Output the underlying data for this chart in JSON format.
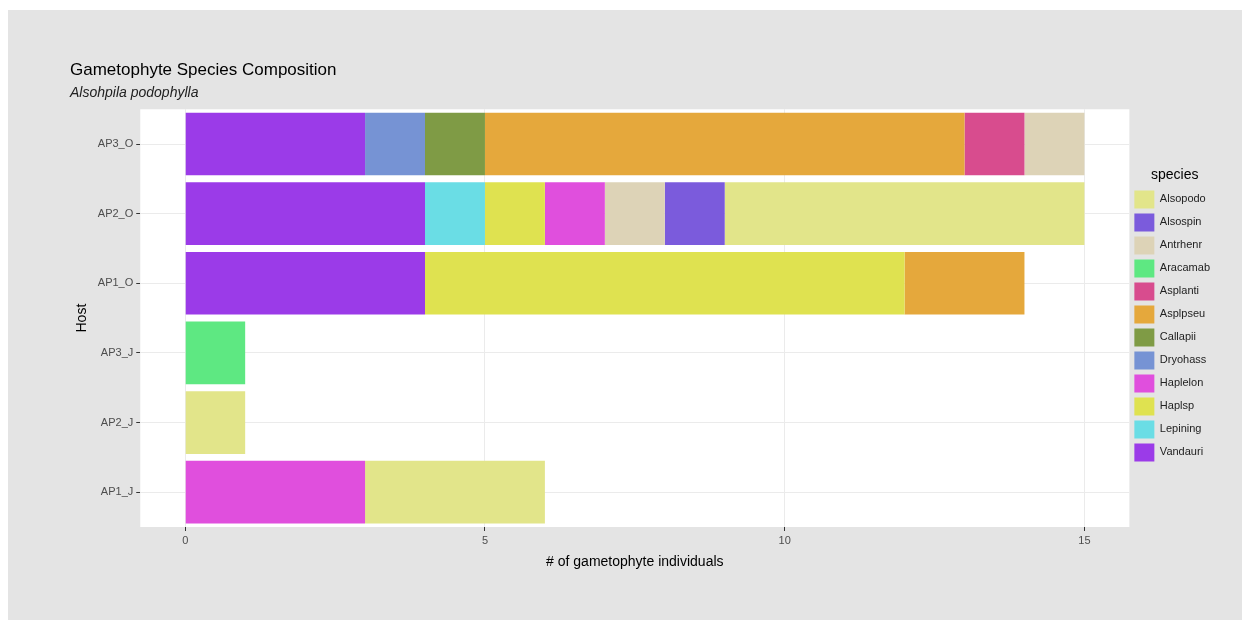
{
  "chart_data": {
    "type": "bar",
    "orientation": "horizontal",
    "stacked": true,
    "title": "Gametophyte Species Composition",
    "subtitle": "Alsohpila podophylla",
    "xlabel": "# of gametophyte individuals",
    "ylabel": "Host",
    "legend_title": "species",
    "legend": "right",
    "grid": true,
    "categories": [
      "AP3_O",
      "AP2_O",
      "AP1_O",
      "AP3_J",
      "AP2_J",
      "AP1_J"
    ],
    "xlim": [
      -0.75,
      15.75
    ],
    "xticks": [
      0,
      5,
      10,
      15
    ],
    "series": [
      {
        "name": "Vandauri",
        "color": "#9b3be8",
        "values": [
          3,
          4,
          4,
          null,
          null,
          null
        ]
      },
      {
        "name": "Lepining",
        "color": "#6adde5",
        "values": [
          null,
          1,
          null,
          null,
          null,
          null
        ]
      },
      {
        "name": "Haplsp",
        "color": "#dfe250",
        "values": [
          null,
          1,
          8,
          null,
          null,
          null
        ]
      },
      {
        "name": "Haplelon",
        "color": "#e04fdd",
        "values": [
          null,
          1,
          null,
          null,
          null,
          3
        ]
      },
      {
        "name": "Dryohass",
        "color": "#7693d4",
        "values": [
          1,
          null,
          null,
          null,
          null,
          null
        ]
      },
      {
        "name": "Callapii",
        "color": "#7f9b45",
        "values": [
          1,
          null,
          null,
          null,
          null,
          null
        ]
      },
      {
        "name": "Asplpseu",
        "color": "#e5a83c",
        "values": [
          8,
          null,
          2,
          null,
          null,
          null
        ]
      },
      {
        "name": "Asplanti",
        "color": "#d84c8e",
        "values": [
          1,
          null,
          null,
          null,
          null,
          null
        ]
      },
      {
        "name": "Aracamab",
        "color": "#5ee882",
        "values": [
          null,
          null,
          null,
          1,
          null,
          null
        ]
      },
      {
        "name": "Antrhenr",
        "color": "#ddd3b7",
        "values": [
          1,
          1,
          null,
          null,
          null,
          null
        ]
      },
      {
        "name": "Alsospin",
        "color": "#7b5bdc",
        "values": [
          null,
          1,
          null,
          null,
          null,
          null
        ]
      },
      {
        "name": "Alsopodo",
        "color": "#e2e58a",
        "values": [
          null,
          6,
          null,
          null,
          1,
          3
        ]
      }
    ]
  }
}
